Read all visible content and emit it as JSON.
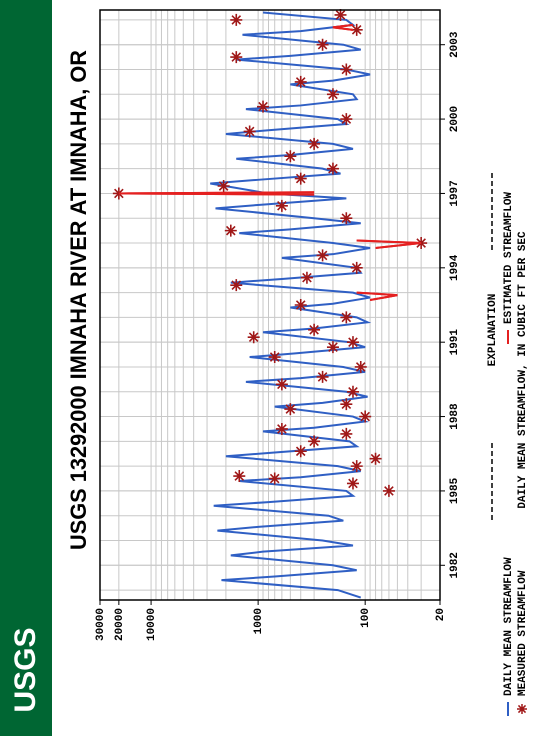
{
  "header": {
    "logo": "USGS"
  },
  "chart_data": {
    "type": "line",
    "title": "USGS 13292000 IMNAHA RIVER AT IMNAHA, OR",
    "y_label": "DAILY MEAN STREAMFLOW, IN CUBIC FT PER SEC",
    "legend_title": "EXPLANATION",
    "log_y": true,
    "grid": true,
    "xlim": [
      1980.6,
      2004.4
    ],
    "xticks": [
      1982,
      1985,
      1988,
      1991,
      1994,
      1997,
      2000,
      2003
    ],
    "ylim": [
      20,
      30000
    ],
    "yticks": [
      20,
      100,
      1000,
      10000,
      20000,
      30000
    ],
    "series": [
      {
        "name": "DAILY MEAN STREAMFLOW",
        "style": "line",
        "color": "#2f5fc4",
        "x": [
          1980.7,
          1981.0,
          1981.4,
          1981.55,
          1981.8,
          1982.0,
          1982.4,
          1982.55,
          1982.8,
          1983.0,
          1983.4,
          1983.55,
          1983.8,
          1984.0,
          1984.4,
          1984.55,
          1984.8,
          1985.0,
          1985.4,
          1985.55,
          1985.8,
          1986.0,
          1986.4,
          1986.55,
          1986.8,
          1987.0,
          1987.4,
          1987.55,
          1987.8,
          1988.0,
          1988.4,
          1988.55,
          1988.8,
          1989.0,
          1989.4,
          1989.55,
          1989.8,
          1990.0,
          1990.4,
          1990.55,
          1990.8,
          1991.0,
          1991.4,
          1991.55,
          1991.8,
          1992.0,
          1992.4,
          1992.55,
          1992.8,
          1993.0,
          1993.4,
          1993.55,
          1993.8,
          1994.0,
          1994.4,
          1994.55,
          1994.8,
          1995.0,
          1995.4,
          1995.55,
          1995.8,
          1996.0,
          1996.4,
          1996.55,
          1996.8,
          1997.0,
          1997.4,
          1997.55,
          1997.8,
          1998.0,
          1998.4,
          1998.55,
          1998.8,
          1999.0,
          1999.4,
          1999.55,
          1999.8,
          2000.0,
          2000.4,
          2000.55,
          2000.8,
          2001.0,
          2001.4,
          2001.55,
          2001.8,
          2002.0,
          2002.4,
          2002.55,
          2002.8,
          2003.0,
          2003.4,
          2003.55,
          2003.8,
          2004.0,
          2004.3
        ],
        "values": [
          110,
          180,
          2200,
          700,
          120,
          200,
          1800,
          900,
          130,
          250,
          2400,
          1000,
          160,
          220,
          2600,
          800,
          130,
          150,
          1500,
          400,
          110,
          180,
          2000,
          700,
          120,
          140,
          900,
          300,
          100,
          130,
          700,
          250,
          95,
          150,
          1300,
          400,
          100,
          160,
          1200,
          450,
          100,
          140,
          900,
          300,
          95,
          120,
          500,
          200,
          90,
          130,
          1800,
          600,
          110,
          120,
          600,
          200,
          90,
          200,
          1500,
          500,
          110,
          300,
          2500,
          900,
          150,
          800,
          2800,
          1000,
          170,
          250,
          1600,
          500,
          130,
          200,
          2000,
          800,
          150,
          180,
          1300,
          400,
          120,
          130,
          500,
          200,
          90,
          150,
          1600,
          500,
          110,
          160,
          1400,
          400,
          130,
          150,
          900
        ]
      },
      {
        "name": "MEASURED STREAMFLOW",
        "style": "star",
        "color": "#a01818",
        "x": [
          1985.0,
          1985.3,
          1985.5,
          1985.6,
          1986.0,
          1986.3,
          1986.6,
          1987.0,
          1987.3,
          1987.5,
          1988.0,
          1988.3,
          1988.5,
          1989.0,
          1989.3,
          1989.6,
          1990.0,
          1990.4,
          1990.8,
          1991.0,
          1991.2,
          1991.5,
          1992.0,
          1992.5,
          1993.3,
          1993.6,
          1994.0,
          1994.5,
          1995.0,
          1995.5,
          1996.0,
          1996.5,
          1997.0,
          1997.3,
          1997.6,
          1998.0,
          1998.5,
          1999.0,
          1999.5,
          2000.0,
          2000.5,
          2001.0,
          2001.5,
          2002.0,
          2002.5,
          2003.0,
          2003.6,
          2004.0,
          2004.2
        ],
        "values": [
          60,
          130,
          700,
          1500,
          120,
          80,
          400,
          300,
          150,
          600,
          100,
          500,
          150,
          130,
          600,
          250,
          110,
          700,
          200,
          130,
          1100,
          300,
          150,
          400,
          1600,
          350,
          120,
          250,
          30,
          1800,
          150,
          600,
          20000,
          2100,
          400,
          200,
          500,
          300,
          1200,
          150,
          900,
          200,
          400,
          150,
          1600,
          250,
          120,
          1600,
          170
        ]
      },
      {
        "name": "ESTIMATED STREAMFLOW",
        "style": "line",
        "color": "#e42020",
        "x": [
          1992.7,
          1992.9,
          1993.0,
          1993.05,
          1994.8,
          1995.0,
          1995.1,
          1995.15,
          1996.95,
          1997.0,
          1997.05,
          1997.1,
          2003.6,
          2003.7,
          2003.8
        ],
        "values": [
          90,
          50,
          120,
          null,
          80,
          30,
          120,
          null,
          300,
          20000,
          300,
          null,
          130,
          200,
          130
        ]
      }
    ]
  }
}
